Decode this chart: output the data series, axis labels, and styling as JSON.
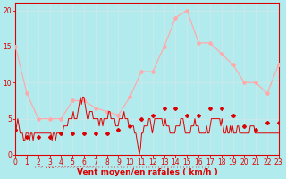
{
  "title": "",
  "xlabel": "Vent moyen/en rafales ( km/h )",
  "bg_color": "#b2ebee",
  "grid_color": "#c8e8ea",
  "rafales_color": "#ffaaaa",
  "moyen_color": "#dd0000",
  "ylim": [
    0,
    21
  ],
  "yticks": [
    0,
    5,
    10,
    15,
    20
  ],
  "xlim": [
    0,
    23
  ],
  "xticks": [
    0,
    1,
    2,
    3,
    4,
    5,
    6,
    7,
    8,
    9,
    10,
    11,
    12,
    13,
    14,
    15,
    16,
    17,
    18,
    19,
    20,
    21,
    22,
    23
  ],
  "rafales": [
    15.0,
    8.5,
    5.0,
    5.0,
    5.0,
    7.5,
    7.5,
    6.5,
    6.0,
    5.5,
    8.0,
    11.5,
    11.5,
    15.0,
    19.0,
    20.0,
    15.5,
    15.5,
    14.0,
    12.5,
    10.0,
    10.0,
    8.5,
    12.5
  ],
  "moyen_dense": [
    3,
    4,
    5,
    4,
    3,
    3,
    3,
    2,
    2,
    3,
    3,
    3,
    2,
    3,
    3,
    2,
    3,
    3,
    3,
    3,
    3,
    3,
    3,
    3,
    3,
    3,
    3,
    3,
    3,
    3,
    3,
    2,
    3,
    3,
    2,
    3,
    3,
    3,
    3,
    3,
    3,
    4,
    4,
    4,
    4,
    5,
    5,
    5,
    5,
    6,
    5,
    5,
    5,
    6,
    7,
    8,
    7,
    8,
    8,
    7,
    6,
    5,
    5,
    6,
    6,
    6,
    5,
    5,
    5,
    5,
    5,
    4,
    5,
    5,
    4,
    5,
    5,
    5,
    5,
    6,
    6,
    5,
    5,
    5,
    5,
    4,
    4,
    4,
    5,
    5,
    5,
    5,
    6,
    5,
    5,
    5,
    4,
    4,
    4,
    4,
    4,
    3,
    3,
    2,
    1,
    0,
    1,
    3,
    3,
    4,
    4,
    4,
    4,
    5,
    5,
    4,
    3,
    4,
    5,
    5,
    5,
    5,
    5,
    5,
    5,
    4,
    4,
    5,
    4,
    4,
    4,
    3,
    3,
    3,
    3,
    3,
    4,
    4,
    4,
    4,
    5,
    5,
    5,
    4,
    3,
    3,
    3,
    3,
    3,
    4,
    4,
    4,
    5,
    4,
    4,
    4,
    3,
    3,
    3,
    3,
    3,
    3,
    4,
    3,
    3,
    4,
    5,
    5,
    5,
    5,
    5,
    5,
    5,
    5,
    4,
    5,
    4,
    3,
    3,
    4,
    3,
    3,
    4,
    3,
    4,
    3,
    3,
    3,
    4,
    4,
    3,
    3,
    3,
    3,
    3,
    3,
    3,
    3,
    3,
    4,
    4,
    4,
    4,
    3,
    3,
    3,
    3,
    3,
    3,
    3,
    3,
    3,
    3,
    3,
    3,
    3,
    3,
    3,
    3,
    3,
    3,
    3,
    3,
    3
  ],
  "moyen_pts": [
    3.5,
    2.5,
    2.5,
    2.5,
    3.0,
    3.0,
    3.0,
    3.0,
    3.0,
    3.5,
    4.0,
    5.0,
    5.5,
    6.5,
    6.5,
    5.5,
    5.5,
    6.5,
    6.5,
    5.5,
    4.0,
    3.5,
    4.5,
    4.5
  ],
  "moyen_pts_x": [
    0,
    1,
    2,
    3,
    4,
    5,
    6,
    7,
    8,
    9,
    10,
    11,
    12,
    13,
    14,
    15,
    16,
    17,
    18,
    19,
    20,
    21,
    22,
    23
  ]
}
